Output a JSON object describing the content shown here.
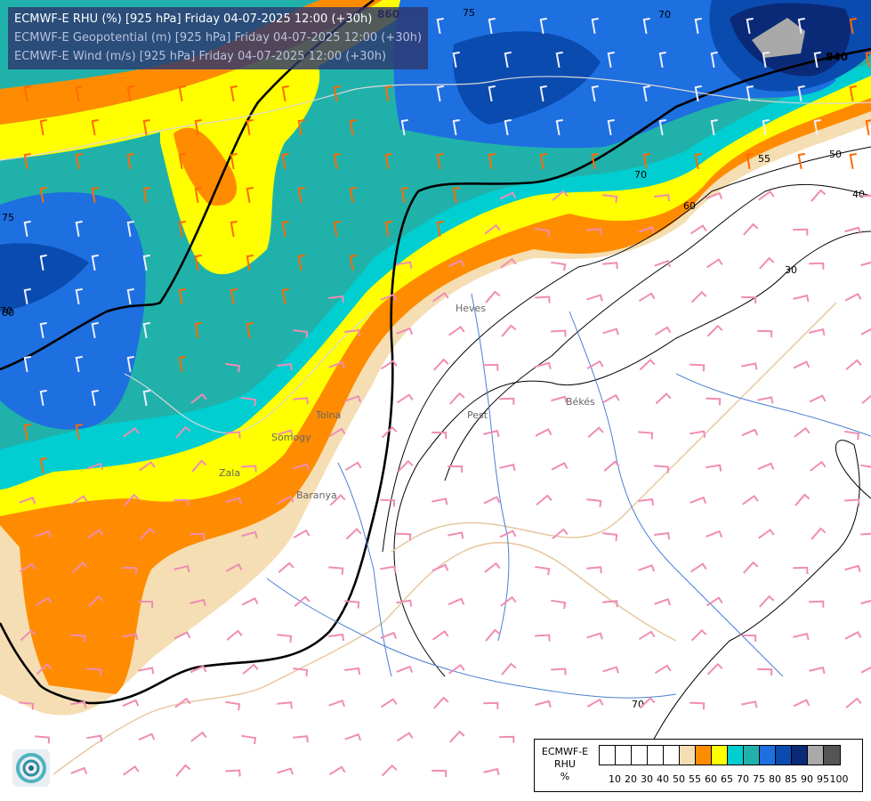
{
  "title_lines": [
    "ECMWF-E RHU (%) [925 hPa] Friday 04-07-2025 12:00 (+30h)",
    "ECMWF-E Geopotential (m) [925 hPa] Friday 04-07-2025 12:00 (+30h)",
    "ECMWF-E Wind (m/s) [925 hPa] Friday 04-07-2025 12:00 (+30h)"
  ],
  "legend": {
    "model": "ECMWF-E",
    "variable": "RHU",
    "unit": "%",
    "colors": [
      "#ffffff",
      "#ffffff",
      "#ffffff",
      "#ffffff",
      "#ffffff",
      "#f5deb3",
      "#ff8c00",
      "#ffff00",
      "#00ced1",
      "#20b2aa",
      "#1e6fe0",
      "#0a4bb0",
      "#0a2a78",
      "#a9a9a9",
      "#555555"
    ],
    "ticks": [
      "10",
      "20",
      "30",
      "40",
      "50",
      "55",
      "60",
      "65",
      "70",
      "75",
      "80",
      "85",
      "90",
      "95",
      "100"
    ]
  },
  "contour_labels": {
    "rhu": [
      "75",
      "70",
      "70",
      "75",
      "70",
      "60",
      "55",
      "50",
      "40",
      "30",
      "80",
      "70"
    ],
    "geopotential": [
      "860",
      "840"
    ]
  },
  "place_labels": [
    "Pest",
    "Békés",
    "Heves",
    "Somogy",
    "Zala",
    "Baranya",
    "Tolna"
  ],
  "colors": {
    "rhu_55": "#f5deb3",
    "rhu_60": "#ff8c00",
    "rhu_65": "#ffff00",
    "rhu_70": "#00ced1",
    "rhu_75": "#20b2aa",
    "rhu_80": "#1e6fe0",
    "rhu_85": "#0a4bb0",
    "rhu_90": "#0a2a78",
    "rhu_95": "#a9a9a9",
    "wind_strong": "#ff6a00",
    "wind_weak": "#f08cb4",
    "wind_moist": "#f0f0ff"
  }
}
